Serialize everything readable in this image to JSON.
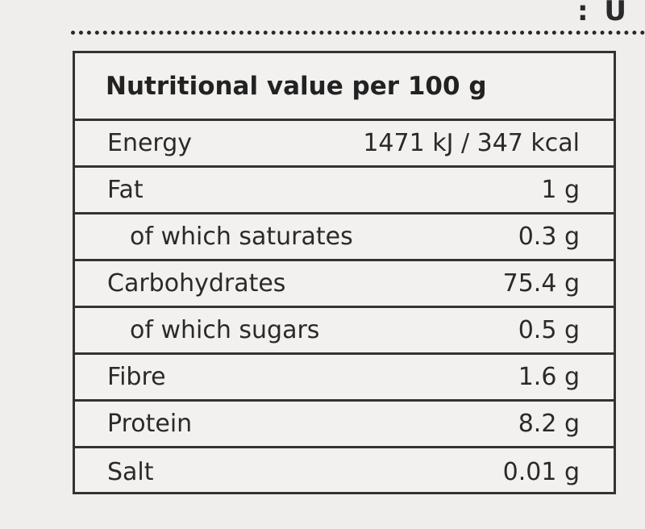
{
  "top_fragment": ": U",
  "table": {
    "header": "Nutritional value per 100 g",
    "rows": [
      {
        "name": "Energy",
        "value": "1471 kJ / 347 kcal"
      },
      {
        "name": "Fat",
        "value": "1 g"
      },
      {
        "name": "of which saturates",
        "value": "0.3 g"
      },
      {
        "name": "Carbohydrates",
        "value": "75.4 g"
      },
      {
        "name": "of which sugars",
        "value": "0.5 g"
      },
      {
        "name": "Fibre",
        "value": "1.6 g"
      },
      {
        "name": "Protein",
        "value": "8.2 g"
      },
      {
        "name": "Salt",
        "value": "0.01 g"
      }
    ]
  },
  "colors": {
    "background": "#efeeec",
    "text": "#1e1e1e",
    "border": "#333333"
  }
}
